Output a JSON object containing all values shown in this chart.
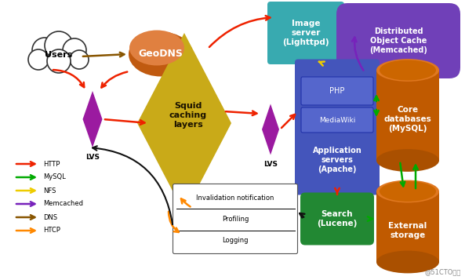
{
  "bg_color": "#ffffff",
  "legend": [
    {
      "label": "HTTP",
      "color": "#ee2200"
    },
    {
      "label": "MySQL",
      "color": "#00aa00"
    },
    {
      "label": "NFS",
      "color": "#eecc00"
    },
    {
      "label": "Memcached",
      "color": "#7722bb"
    },
    {
      "label": "DNS",
      "color": "#885500"
    },
    {
      "label": "HTCP",
      "color": "#ff8800"
    }
  ],
  "HTTP": "#ee2200",
  "MYSQL": "#00aa00",
  "NFS": "#eecc00",
  "MEMC": "#7722bb",
  "DNS": "#885500",
  "HTCP": "#ff8800",
  "BLK": "#111111"
}
